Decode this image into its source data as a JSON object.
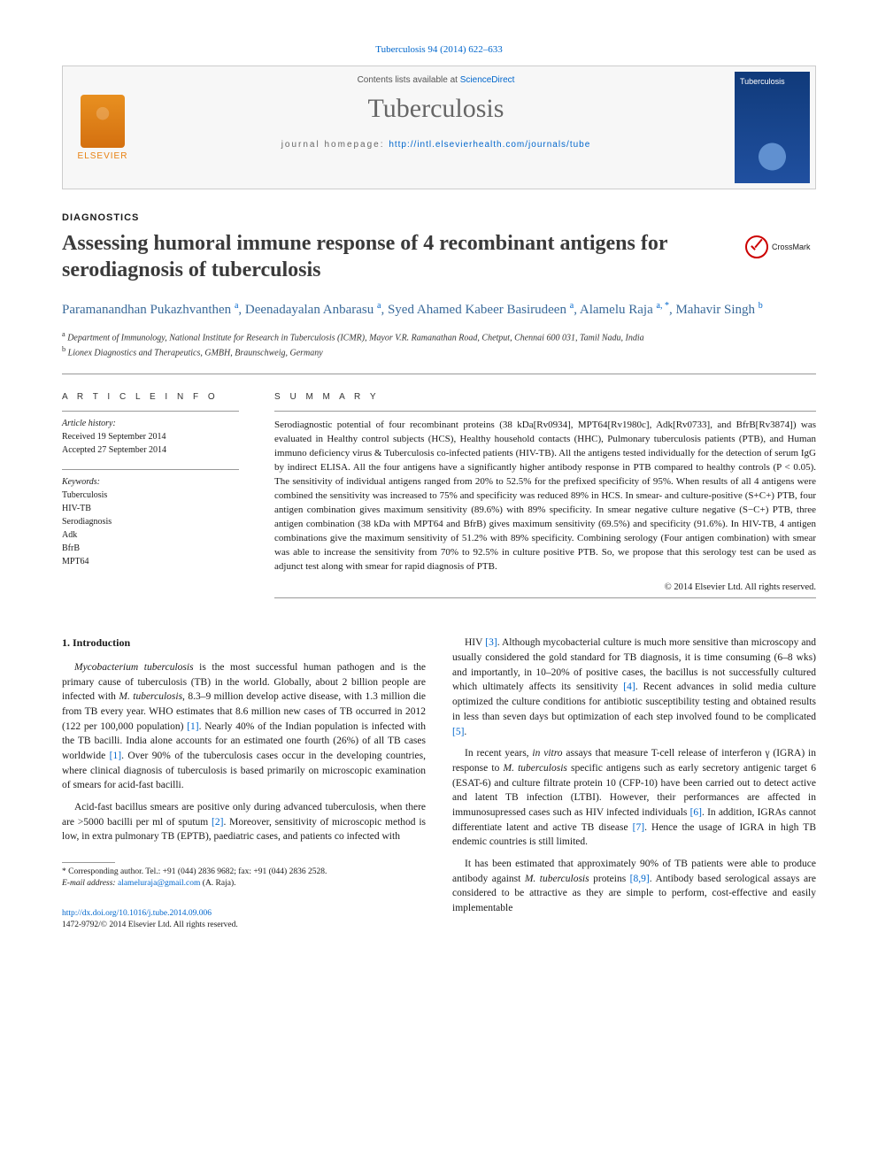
{
  "topline": "Tuberculosis 94 (2014) 622–633",
  "header": {
    "contents_prefix": "Contents lists available at ",
    "contents_link": "ScienceDirect",
    "journal": "Tuberculosis",
    "homepage_prefix": "journal homepage: ",
    "homepage_url": "http://intl.elsevierhealth.com/journals/tube",
    "elsevier": "ELSEVIER"
  },
  "section_tag": "DIAGNOSTICS",
  "title": "Assessing humoral immune response of 4 recombinant antigens for serodiagnosis of tuberculosis",
  "crossmark": "CrossMark",
  "authors_html": "Paramanandhan Pukazhvanthen <sup>a</sup>, Deenadayalan Anbarasu <sup>a</sup>, Syed Ahamed Kabeer Basirudeen <sup>a</sup>, Alamelu Raja <sup>a, *</sup>, Mahavir Singh <sup>b</sup>",
  "affiliations": {
    "a": "Department of Immunology, National Institute for Research in Tuberculosis (ICMR), Mayor V.R. Ramanathan Road, Chetput, Chennai 600 031, Tamil Nadu, India",
    "b": "Lionex Diagnostics and Therapeutics, GMBH, Braunschweig, Germany"
  },
  "article_info": {
    "heading": "A R T I C L E   I N F O",
    "history_label": "Article history:",
    "received": "Received 19 September 2014",
    "accepted": "Accepted 27 September 2014",
    "keywords_label": "Keywords:",
    "keywords": [
      "Tuberculosis",
      "HIV-TB",
      "Serodiagnosis",
      "Adk",
      "BfrB",
      "MPT64"
    ]
  },
  "summary": {
    "heading": "S U M M A R Y",
    "text": "Serodiagnostic potential of four recombinant proteins (38 kDa[Rv0934], MPT64[Rv1980c], Adk[Rv0733], and BfrB[Rv3874]) was evaluated in Healthy control subjects (HCS), Healthy household contacts (HHC), Pulmonary tuberculosis patients (PTB), and Human immuno deficiency virus & Tuberculosis co-infected patients (HIV-TB). All the antigens tested individually for the detection of serum IgG by indirect ELISA. All the four antigens have a significantly higher antibody response in PTB compared to healthy controls (P < 0.05). The sensitivity of individual antigens ranged from 20% to 52.5% for the prefixed specificity of 95%. When results of all 4 antigens were combined the sensitivity was increased to 75% and specificity was reduced 89% in HCS. In smear- and culture-positive (S+C+) PTB, four antigen combination gives maximum sensitivity (89.6%) with 89% specificity. In smear negative culture negative (S−C+) PTB, three antigen combination (38 kDa with MPT64 and BfrB) gives maximum sensitivity (69.5%) and specificity (91.6%). In HIV-TB, 4 antigen combinations give the maximum sensitivity of 51.2% with 89% specificity. Combining serology (Four antigen combination) with smear was able to increase the sensitivity from 70% to 92.5% in culture positive PTB. So, we propose that this serology test can be used as adjunct test along with smear for rapid diagnosis of PTB.",
    "copyright": "© 2014 Elsevier Ltd. All rights reserved."
  },
  "body": {
    "heading1": "1. Introduction",
    "p1": "Mycobacterium tuberculosis is the most successful human pathogen and is the primary cause of tuberculosis (TB) in the world. Globally, about 2 billion people are infected with M. tuberculosis, 8.3–9 million develop active disease, with 1.3 million die from TB every year. WHO estimates that 8.6 million new cases of TB occurred in 2012 (122 per 100,000 population) [1]. Nearly 40% of the Indian population is infected with the TB bacilli. India alone accounts for an estimated one fourth (26%) of all TB cases worldwide [1]. Over 90% of the tuberculosis cases occur in the developing countries, where clinical diagnosis of tuberculosis is based primarily on microscopic examination of smears for acid-fast bacilli.",
    "p2": "Acid-fast bacillus smears are positive only during advanced tuberculosis, when there are >5000 bacilli per ml of sputum [2]. Moreover, sensitivity of microscopic method is low, in extra pulmonary TB (EPTB), paediatric cases, and patients co infected with",
    "p3": "HIV [3]. Although mycobacterial culture is much more sensitive than microscopy and usually considered the gold standard for TB diagnosis, it is time consuming (6–8 wks) and importantly, in 10–20% of positive cases, the bacillus is not successfully cultured which ultimately affects its sensitivity [4]. Recent advances in solid media culture optimized the culture conditions for antibiotic susceptibility testing and obtained results in less than seven days but optimization of each step involved found to be complicated [5].",
    "p4": "In recent years, in vitro assays that measure T-cell release of interferon γ (IGRA) in response to M. tuberculosis specific antigens such as early secretory antigenic target 6 (ESAT-6) and culture filtrate protein 10 (CFP-10) have been carried out to detect active and latent TB infection (LTBI). However, their performances are affected in immunosupressed cases such as HIV infected individuals [6]. In addition, IGRAs cannot differentiate latent and active TB disease [7]. Hence the usage of IGRA in high TB endemic countries is still limited.",
    "p5": "It has been estimated that approximately 90% of TB patients were able to produce antibody against M. tuberculosis proteins [8,9]. Antibody based serological assays are considered to be attractive as they are simple to perform, cost-effective and easily implementable"
  },
  "footnote": {
    "corresponding": "* Corresponding author. Tel.: +91 (044) 2836 9682; fax: +91 (044) 2836 2528.",
    "email_label": "E-mail address:",
    "email": "alameluraja@gmail.com",
    "email_suffix": "(A. Raja)."
  },
  "doi": {
    "url": "http://dx.doi.org/10.1016/j.tube.2014.09.006",
    "issn": "1472-9792/© 2014 Elsevier Ltd. All rights reserved."
  },
  "colors": {
    "link": "#0066cc",
    "author": "#3a6a9a",
    "elsevier": "#e88010",
    "rule": "#999999"
  },
  "typography": {
    "title_pt": 24,
    "author_pt": 15,
    "body_pt": 11.5,
    "abstract_pt": 11,
    "footnote_pt": 9.5
  }
}
